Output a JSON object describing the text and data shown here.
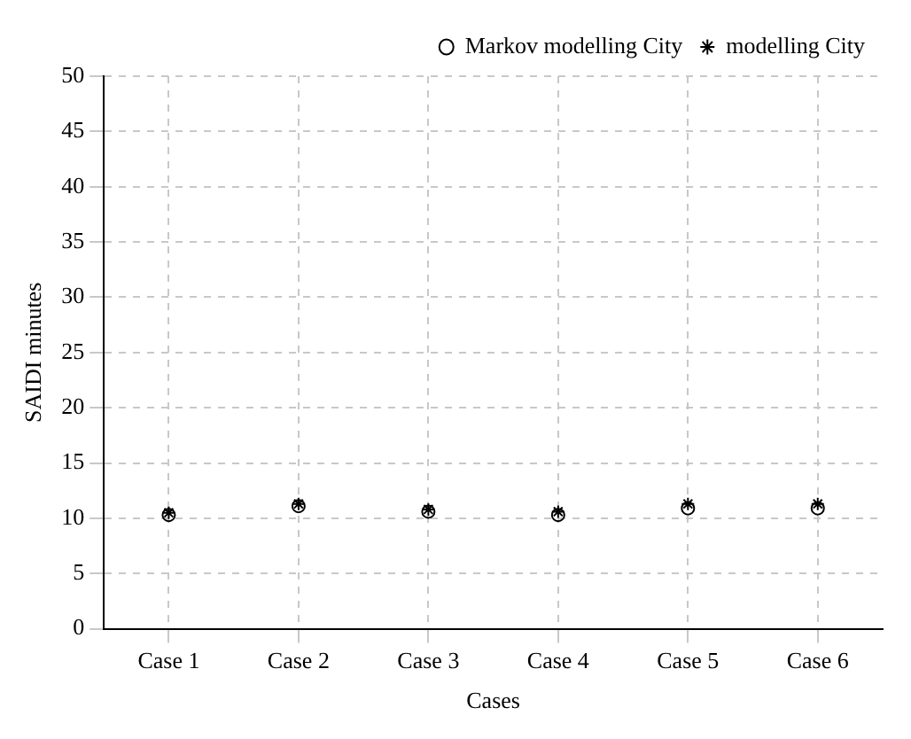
{
  "chart_data": {
    "type": "scatter",
    "xlabel": "Cases",
    "ylabel": "SAIDI minutes",
    "categories": [
      "Case 1",
      "Case 2",
      "Case 3",
      "Case 4",
      "Case 5",
      "Case 6"
    ],
    "series": [
      {
        "name": "Markov modelling City",
        "color": "#000000",
        "marker": "circle",
        "values": [
          10.3,
          11.1,
          10.6,
          10.3,
          10.9,
          10.9
        ]
      },
      {
        "name": "modelling City",
        "color": "#000000",
        "marker": "cross",
        "values": [
          10.5,
          11.3,
          10.8,
          10.6,
          11.3,
          11.3
        ]
      }
    ],
    "ylim": [
      0,
      50
    ],
    "yticks": [
      0,
      5,
      10,
      15,
      20,
      25,
      30,
      35,
      40,
      45,
      50
    ],
    "grid": true,
    "legend": "top right"
  }
}
